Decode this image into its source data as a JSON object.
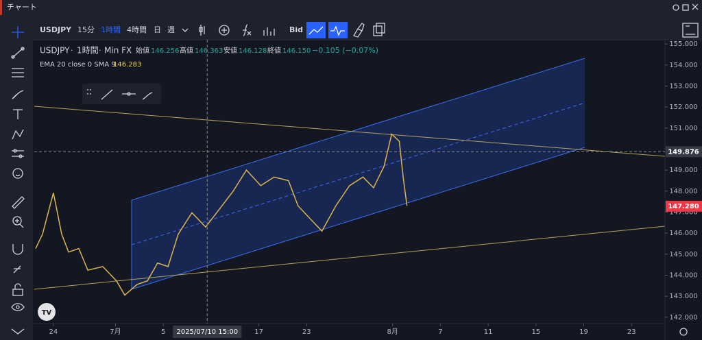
{
  "window_title": "チャート",
  "toolbar": {
    "symbol": "USDJPY",
    "intervals": [
      "15分",
      "1時間",
      "4時間",
      "日",
      "週"
    ],
    "price_type": "Bid"
  },
  "legend": {
    "symbol": "USDJPY",
    "interval": "1時間",
    "source": "Min FX",
    "sep": "·",
    "ohlc": [
      {
        "label": "始値",
        "value": "146.256"
      },
      {
        "label": "高値",
        "value": "146.363"
      },
      {
        "label": "安値",
        "value": "146.128"
      },
      {
        "label": "終値",
        "value": "146.150"
      }
    ],
    "change": "−0.105 (−0.07%)",
    "indicator": "EMA 20 close 0 SMA 9",
    "indicator_value": "146.283"
  },
  "chart_data": {
    "type": "line",
    "color": "#e0b64a",
    "x": [
      -1.86,
      -1.14,
      0,
      0.87,
      1.59,
      2.66,
      3.6,
      5.17,
      6.6,
      7.47,
      8.76,
      9.84,
      10.9,
      12,
      13.06,
      14.5,
      15.93,
      17.37,
      18.8,
      20.2,
      21.7,
      23.1,
      24.6,
      25.6,
      27.05,
      28.1,
      29.56,
      30.99,
      32.4,
      33.5,
      34.6,
      35.4,
      36.2,
      36.6,
      37
    ],
    "values": [
      145.27,
      145.95,
      147.92,
      145.95,
      145.1,
      145.27,
      144.24,
      144.41,
      143.73,
      143.05,
      143.56,
      143.73,
      144.58,
      144.41,
      145.95,
      146.97,
      146.29,
      147.14,
      147.99,
      149,
      148.26,
      148.67,
      148.5,
      147.3,
      146.6,
      146.1,
      147.3,
      148.26,
      148.67,
      148.16,
      149.18,
      150.71,
      150.37,
      148.67,
      147.3
    ],
    "xlim": [
      -2,
      64
    ],
    "ylim": [
      141.7,
      155.2
    ],
    "xticks": [
      {
        "value": 0,
        "label": "24"
      },
      {
        "value": 6.5,
        "label": "7月"
      },
      {
        "value": 11.5,
        "label": "5"
      },
      {
        "value": 21.5,
        "label": "17"
      },
      {
        "value": 26.5,
        "label": "23"
      },
      {
        "value": 35.5,
        "label": "8月"
      },
      {
        "value": 40.5,
        "label": "7"
      },
      {
        "value": 45.5,
        "label": "11"
      },
      {
        "value": 50.5,
        "label": "15"
      },
      {
        "value": 55.5,
        "label": "19"
      },
      {
        "value": 60.5,
        "label": "23"
      }
    ],
    "yticks": [
      {
        "value": 142,
        "label": "142.000"
      },
      {
        "value": 143,
        "label": "143.000"
      },
      {
        "value": 144,
        "label": "144.000"
      },
      {
        "value": 145,
        "label": "145.000"
      },
      {
        "value": 146,
        "label": "146.000"
      },
      {
        "value": 147,
        "label": "147.000"
      },
      {
        "value": 148,
        "label": "148.000"
      },
      {
        "value": 149,
        "label": "149.000"
      },
      {
        "value": 150,
        "label": "150.000"
      },
      {
        "value": 151,
        "label": "151.000"
      },
      {
        "value": 152,
        "label": "152.000"
      },
      {
        "value": 153,
        "label": "153.000"
      },
      {
        "value": 154,
        "label": "154.000"
      },
      {
        "value": 155,
        "label": "155.000"
      }
    ],
    "crosshair_x": {
      "value": 16.1,
      "label": "2025/07/10  15:00"
    },
    "crosshair_price": 149.876,
    "last_price": {
      "value": 147.28,
      "label": "147.280"
    }
  }
}
